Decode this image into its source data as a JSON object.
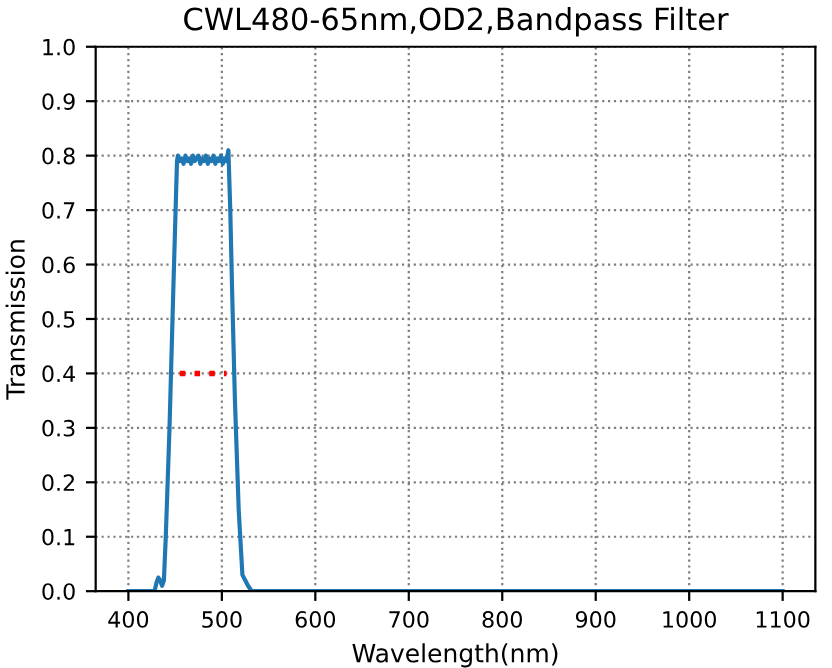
{
  "chart_data": {
    "type": "line",
    "title": "CWL480-65nm,OD2,Bandpass Filter",
    "xlabel": "Wavelength(nm)",
    "ylabel": "Transmission",
    "series": [
      {
        "color": "#1f77b4",
        "line_style": "solid",
        "x": [
          400,
          428,
          430,
          432,
          434,
          436,
          438,
          440,
          444,
          448,
          452,
          453,
          455,
          457,
          459,
          461,
          463,
          465,
          467,
          469,
          471,
          473,
          475,
          477,
          479,
          481,
          483,
          485,
          487,
          489,
          491,
          493,
          495,
          497,
          499,
          501,
          503,
          505,
          507,
          509,
          511,
          514,
          518,
          522,
          525,
          528,
          532,
          600,
          700,
          800,
          900,
          1000,
          1100
        ],
        "values": [
          0,
          0,
          0.015,
          0.025,
          0.02,
          0.01,
          0.02,
          0.1,
          0.3,
          0.55,
          0.79,
          0.8,
          0.79,
          0.795,
          0.785,
          0.8,
          0.79,
          0.795,
          0.785,
          0.8,
          0.79,
          0.795,
          0.8,
          0.785,
          0.795,
          0.79,
          0.8,
          0.785,
          0.795,
          0.79,
          0.8,
          0.785,
          0.795,
          0.79,
          0.8,
          0.785,
          0.795,
          0.79,
          0.81,
          0.7,
          0.55,
          0.35,
          0.15,
          0.03,
          0.02,
          0.01,
          0,
          0,
          0,
          0,
          0,
          0,
          0
        ]
      },
      {
        "color": "#ff0000",
        "line_style": "dotted",
        "x": [
          455,
          505
        ],
        "values": [
          0.4,
          0.4
        ]
      }
    ],
    "xlim": [
      365,
      1135
    ],
    "ylim": [
      0,
      1
    ],
    "xticks": [
      400,
      500,
      600,
      700,
      800,
      900,
      1000,
      1100
    ],
    "yticks": [
      {
        "value": 0,
        "label": "0.0"
      },
      0.1,
      0.2,
      0.3,
      0.4,
      0.5,
      0.6,
      0.7,
      0.8,
      0.9,
      {
        "value": 1,
        "label": "1.0"
      }
    ],
    "grid": true
  }
}
